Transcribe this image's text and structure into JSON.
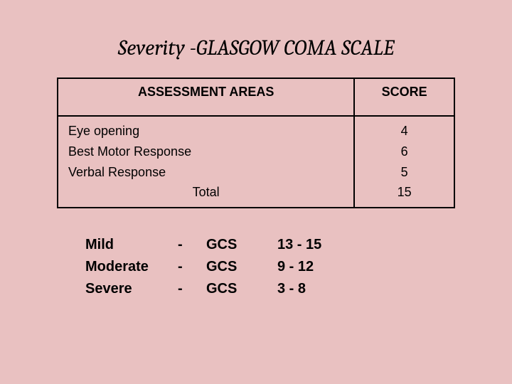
{
  "title": "Severity -GLASGOW COMA SCALE",
  "table": {
    "headers": {
      "area": "ASSESSMENT AREAS",
      "score": "SCORE"
    },
    "rows": [
      {
        "area": "Eye opening",
        "score": "4"
      },
      {
        "area": "Best Motor Response",
        "score": "6"
      },
      {
        "area": "Verbal Response",
        "score": "5"
      }
    ],
    "total": {
      "label": "Total",
      "score": "15"
    }
  },
  "severity": [
    {
      "label": "Mild",
      "dash": "-",
      "gcs": "GCS",
      "range": "13  -  15"
    },
    {
      "label": "Moderate",
      "dash": "-",
      "gcs": "GCS",
      "range": "9  -  12"
    },
    {
      "label": "Severe",
      "dash": "-",
      "gcs": "GCS",
      "range": "3 - 8"
    }
  ],
  "style": {
    "background_color": "#e9c1c1",
    "text_color": "#000000",
    "border_color": "#000000",
    "title_fontsize_pt": 23,
    "table_fontsize_pt": 14,
    "severity_fontsize_pt": 15,
    "title_font": "Cambria italic",
    "body_font": "Tahoma"
  }
}
